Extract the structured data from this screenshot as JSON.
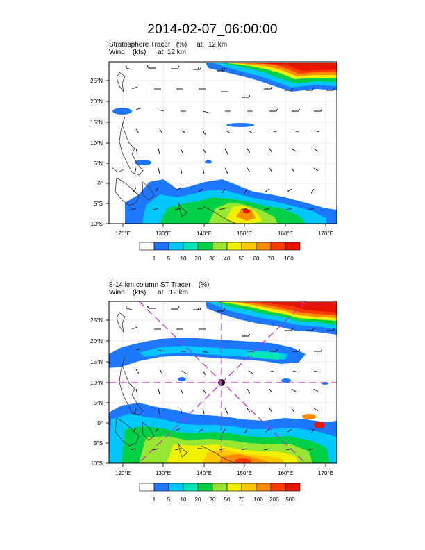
{
  "title": "2014-02-07_06:00:00",
  "panels": [
    {
      "subtitle_line1": "Stratosphere Tracer   (%)     at   12 km",
      "subtitle_line2": "Wind    (kts)      at  12 km",
      "lat_labels": [
        "25°N",
        "20°N",
        "15°N",
        "10°N",
        "5°N",
        "0°",
        "5°S",
        "10°S"
      ],
      "lon_labels": [
        "120°E",
        "130°E",
        "140°E",
        "150°E",
        "160°E",
        "170°E"
      ],
      "colorbar_labels": [
        "1",
        "5",
        "10",
        "20",
        "30",
        "40",
        "50",
        "60",
        "70",
        "100"
      ]
    },
    {
      "subtitle_line1": "8-14 km column ST Tracer    (%)",
      "subtitle_line2": "Wind    (kts)      at   12 km",
      "lat_labels": [
        "25°N",
        "20°N",
        "15°N",
        "10°N",
        "5°N",
        "0°",
        "5°S",
        "10°S"
      ],
      "lon_labels": [
        "120°E",
        "130°E",
        "140°E",
        "150°E",
        "160°E",
        "170°E"
      ],
      "colorbar_labels": [
        "1",
        "5",
        "10",
        "20",
        "30",
        "50",
        "70",
        "100",
        "200",
        "500"
      ]
    }
  ],
  "colorbar_colors": [
    "#ffffff",
    "#1e78ff",
    "#00c8ff",
    "#00e6b4",
    "#00d046",
    "#96e632",
    "#f0f000",
    "#ffc800",
    "#ff8c00",
    "#ff3c00",
    "#e61400"
  ],
  "storm_marker_color": "#cc22cc"
}
